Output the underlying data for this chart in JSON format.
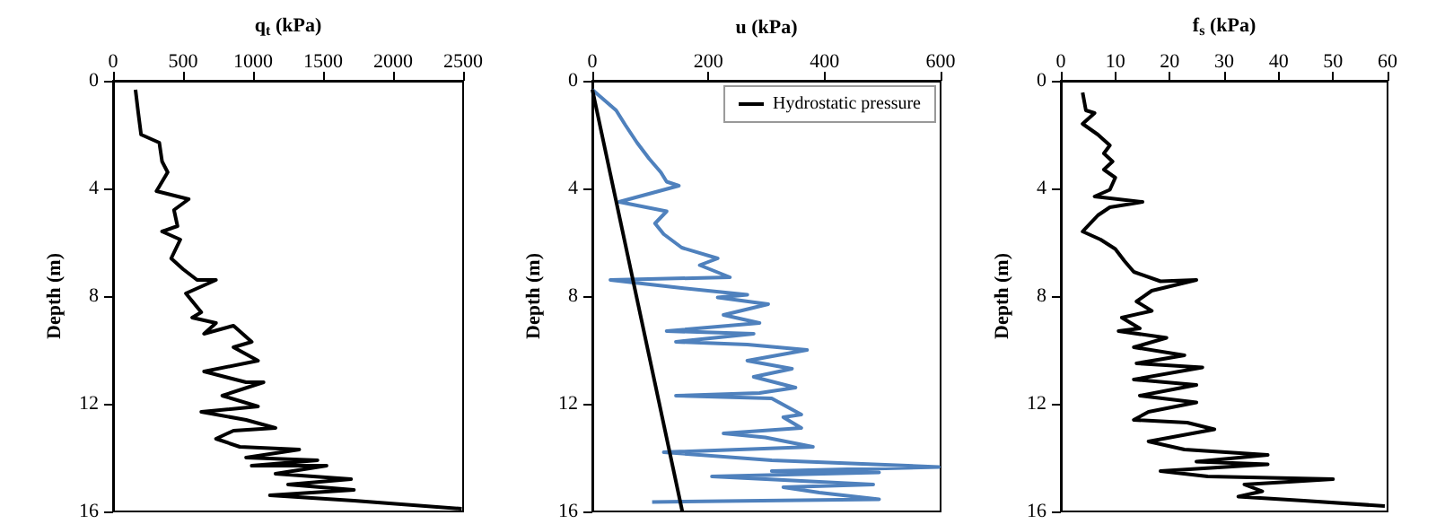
{
  "chart_data": [
    {
      "type": "line",
      "xlabel": "q$_{t}$ (kPa)",
      "ylabel": "Depth (m)",
      "xlim": [
        0,
        2500
      ],
      "xticks": [
        0,
        500,
        1000,
        1500,
        2000,
        2500
      ],
      "ylim": [
        16,
        0
      ],
      "yticks": [
        0,
        4,
        8,
        12,
        16
      ],
      "grid": false,
      "legend": false,
      "series": [
        {
          "color": "#000000",
          "x": [
            160,
            180,
            200,
            330,
            350,
            390,
            310,
            540,
            435,
            460,
            350,
            480,
            415,
            500,
            600,
            735,
            520,
            630,
            565,
            735,
            650,
            860,
            990,
            860,
            1035,
            650,
            950,
            1075,
            780,
            1035,
            630,
            950,
            1160,
            860,
            735,
            905,
            1330,
            950,
            1460,
            990,
            1525,
            1160,
            1700,
            1250,
            1720,
            1120,
            1720,
            2490
          ],
          "values": [
            0.33,
            1.2,
            2,
            2.3,
            3,
            3.4,
            4.1,
            4.4,
            4.8,
            5.4,
            5.6,
            5.9,
            6.6,
            7,
            7.4,
            7.4,
            7.9,
            8.6,
            8.8,
            9,
            9.4,
            9.1,
            9.7,
            9.9,
            10.4,
            10.8,
            11.2,
            11.2,
            11.7,
            12.1,
            12.3,
            12.6,
            12.9,
            13,
            13.3,
            13.6,
            13.7,
            14,
            14.1,
            14.3,
            14.3,
            14.6,
            14.8,
            15,
            15.2,
            15.4,
            15.6,
            15.9
          ]
        }
      ]
    },
    {
      "type": "line",
      "xlabel": "u (kPa)",
      "ylabel": "Depth (m)",
      "xlim": [
        0,
        600
      ],
      "xticks": [
        0,
        200,
        400,
        600
      ],
      "ylim": [
        16,
        0
      ],
      "yticks": [
        0,
        4,
        8,
        12,
        16
      ],
      "grid": false,
      "legend": "top right",
      "series": [
        {
          "color": "#4f81bd",
          "x": [
            0,
            41,
            57,
            77,
            98,
            118,
            128,
            149,
            46,
            128,
            108,
            123,
            154,
            216,
            185,
            237,
            31,
            154,
            267,
            216,
            303,
            226,
            288,
            128,
            278,
            144,
            267,
            370,
            267,
            344,
            278,
            350,
            288,
            144,
            309,
            360,
            329,
            360,
            226,
            298,
            380,
            123,
            309,
            597,
            309,
            494,
            206,
            484,
            329,
            391,
            494,
            103
          ],
          "values": [
            0.33,
            1.1,
            1.65,
            2.3,
            2.9,
            3.4,
            3.75,
            3.9,
            4.5,
            4.85,
            5.3,
            5.7,
            6.2,
            6.6,
            6.85,
            7.3,
            7.4,
            7.7,
            7.95,
            8.05,
            8.3,
            8.7,
            9,
            9.3,
            9.4,
            9.7,
            9.8,
            10,
            10.4,
            10.7,
            11,
            11.4,
            11.6,
            11.7,
            11.8,
            12.4,
            12.5,
            12.9,
            13.1,
            13.25,
            13.6,
            13.8,
            14.1,
            14.35,
            14.5,
            14.55,
            14.7,
            15,
            15.1,
            15.3,
            15.55,
            15.65
          ]
        },
        {
          "name": "Hydrostatic pressure",
          "color": "#000000",
          "x": [
            0,
            155
          ],
          "values": [
            0.33,
            16
          ]
        }
      ]
    },
    {
      "type": "line",
      "xlabel": "f$_{s}$ (kPa)",
      "ylabel": "Depth (m)",
      "xlim": [
        0,
        60
      ],
      "xticks": [
        0,
        10,
        20,
        30,
        40,
        50,
        60
      ],
      "ylim": [
        16,
        0
      ],
      "yticks": [
        0,
        4,
        8,
        12,
        16
      ],
      "grid": false,
      "legend": false,
      "series": [
        {
          "color": "#000000",
          "x": [
            4,
            4.6,
            6.2,
            4,
            6.8,
            9,
            7.9,
            9.5,
            7.9,
            10,
            9,
            6.2,
            15,
            9,
            6.8,
            4,
            7.3,
            10,
            11.7,
            13.4,
            18.3,
            24.9,
            16.7,
            13.9,
            16.7,
            11.2,
            14.5,
            10.6,
            19.4,
            13.4,
            22.7,
            13.9,
            26,
            13.4,
            24.9,
            14.5,
            24.9,
            16.1,
            13.4,
            23.2,
            28.2,
            16.1,
            22.7,
            38,
            24.9,
            38,
            18.3,
            27,
            50,
            33.7,
            37,
            32.6,
            44.6,
            59.5
          ],
          "values": [
            0.44,
            1.1,
            1.2,
            1.6,
            2,
            2.4,
            2.7,
            3,
            3.3,
            3.6,
            4.05,
            4.3,
            4.5,
            4.7,
            5,
            5.6,
            5.9,
            6.25,
            6.7,
            7.1,
            7.45,
            7.4,
            7.8,
            8.2,
            8.55,
            8.8,
            9.2,
            9.3,
            9.55,
            9.9,
            10.2,
            10.5,
            10.65,
            11.1,
            11.3,
            11.7,
            11.95,
            12.3,
            12.6,
            12.7,
            12.95,
            13.4,
            13.7,
            13.9,
            14.15,
            14.25,
            14.5,
            14.7,
            14.8,
            15,
            15.25,
            15.45,
            15.6,
            15.8
          ]
        }
      ]
    }
  ]
}
